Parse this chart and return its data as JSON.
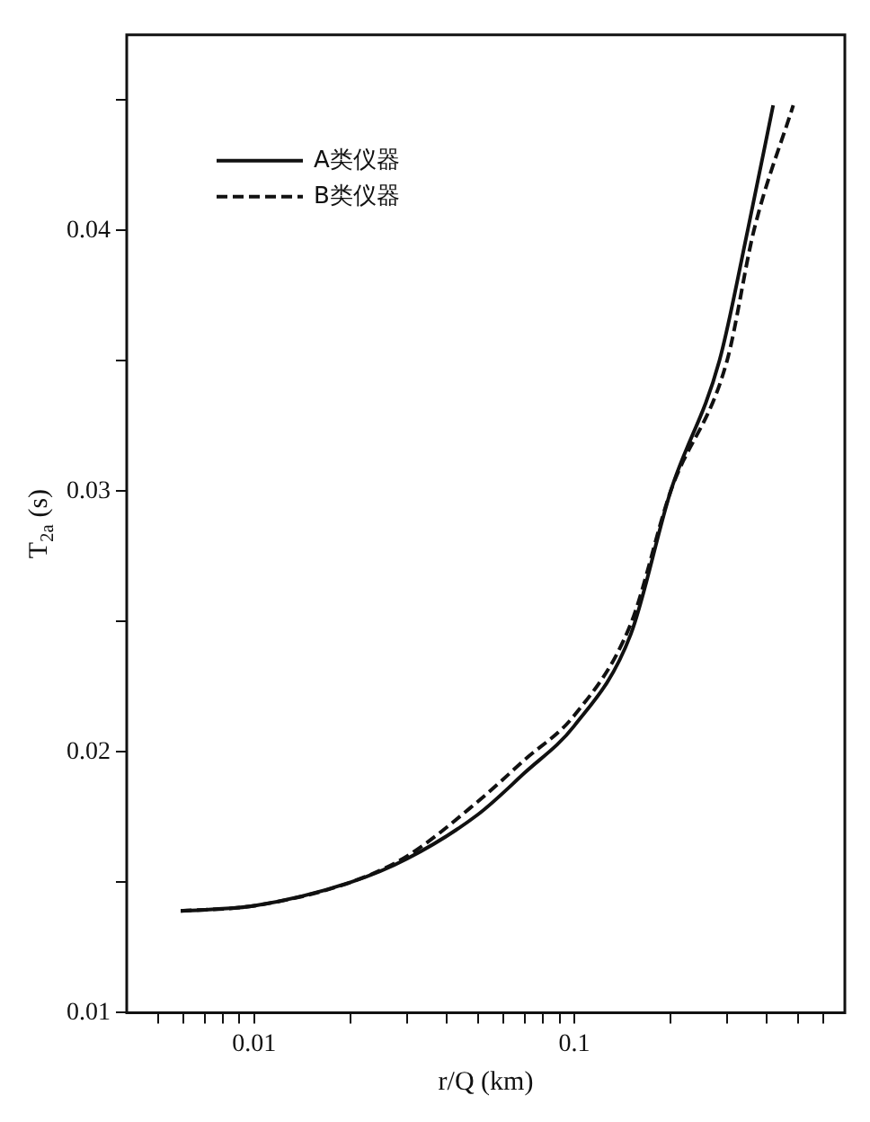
{
  "chart_data": {
    "type": "line",
    "xlabel": "r/Q (km)",
    "ylabel": "T$_{2a}$ (s)",
    "log": "x",
    "grid": false,
    "legend": "top left",
    "marker": "none",
    "xlim": [
      0.004,
      0.7
    ],
    "ylim": [
      0.01,
      0.0475
    ],
    "xticks": [
      {
        "value": 0.005,
        "label": null
      },
      {
        "value": 0.006,
        "label": null
      },
      {
        "value": 0.007,
        "label": null
      },
      {
        "value": 0.008,
        "label": null
      },
      {
        "value": 0.009,
        "label": null
      },
      0.01,
      {
        "value": 0.02,
        "label": null
      },
      {
        "value": 0.03,
        "label": null
      },
      {
        "value": 0.04,
        "label": null
      },
      {
        "value": 0.05,
        "label": null
      },
      {
        "value": 0.06,
        "label": null
      },
      {
        "value": 0.07,
        "label": null
      },
      {
        "value": 0.08,
        "label": null
      },
      {
        "value": 0.09,
        "label": null
      },
      0.1,
      {
        "value": 0.2,
        "label": null
      },
      {
        "value": 0.3,
        "label": null
      },
      {
        "value": 0.4,
        "label": null
      },
      {
        "value": 0.5,
        "label": null
      },
      {
        "value": 0.6,
        "label": null
      }
    ],
    "yticks": [
      0.01,
      {
        "value": 0.015,
        "label": null
      },
      0.02,
      {
        "value": 0.025,
        "label": null
      },
      0.03,
      {
        "value": 0.035,
        "label": null
      },
      0.04,
      {
        "value": 0.045,
        "label": null
      }
    ],
    "series": [
      {
        "name": "A类仪器",
        "color": "#111111",
        "line_style": "solid",
        "x": [
          0.0059,
          0.01,
          0.02,
          0.03,
          0.05,
          0.07,
          0.1,
          0.15,
          0.2,
          0.284,
          0.348,
          0.418
        ],
        "values": [
          0.0139,
          0.0141,
          0.015,
          0.0159,
          0.0176,
          0.0192,
          0.021,
          0.0245,
          0.03,
          0.035,
          0.04,
          0.0448
        ]
      },
      {
        "name": "B类仪器",
        "color": "#111111",
        "line_style": "dashed",
        "x": [
          0.0059,
          0.01,
          0.02,
          0.03,
          0.05,
          0.07,
          0.1,
          0.15,
          0.2,
          0.3,
          0.364,
          0.483
        ],
        "values": [
          0.0139,
          0.0141,
          0.015,
          0.016,
          0.0181,
          0.0197,
          0.0214,
          0.0249,
          0.03,
          0.035,
          0.04,
          0.0448
        ]
      }
    ]
  }
}
